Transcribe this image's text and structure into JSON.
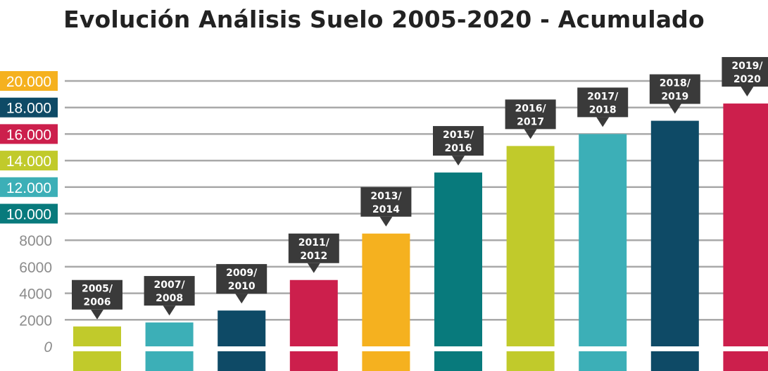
{
  "chart_data": {
    "type": "bar",
    "title": "Evolución Análisis Suelo 2005-2020 - Acumulado",
    "categories": [
      "2005/\n2006",
      "2007/\n2008",
      "2009/\n2010",
      "2011/\n2012",
      "2013/\n2014",
      "2015/\n2016",
      "2016/\n2017",
      "2017/\n2018",
      "2018/\n2019",
      "2019/\n2020"
    ],
    "values": [
      1500,
      1800,
      2700,
      5000,
      8500,
      13100,
      15100,
      16000,
      17000,
      18300
    ],
    "bar_colors": [
      "#c1ca2b",
      "#3cafb7",
      "#0e4a66",
      "#cc1f4c",
      "#f5b11f",
      "#087a7c",
      "#c1ca2b",
      "#3cafb7",
      "#0e4a66",
      "#cc1f4c"
    ],
    "ylim": [
      0,
      20000
    ],
    "y_ticks": [
      {
        "value": 0,
        "label": "0",
        "badge": false
      },
      {
        "value": 2000,
        "label": "2000",
        "badge": false
      },
      {
        "value": 4000,
        "label": "4000",
        "badge": false
      },
      {
        "value": 6000,
        "label": "6000",
        "badge": false
      },
      {
        "value": 8000,
        "label": "8000",
        "badge": false
      },
      {
        "value": 10000,
        "label": "10.000",
        "badge": true,
        "color": "#087a7c"
      },
      {
        "value": 12000,
        "label": "12.000",
        "badge": true,
        "color": "#3cafb7"
      },
      {
        "value": 14000,
        "label": "14.000",
        "badge": true,
        "color": "#c1ca2b"
      },
      {
        "value": 16000,
        "label": "16.000",
        "badge": true,
        "color": "#cc1f4c"
      },
      {
        "value": 18000,
        "label": "18.000",
        "badge": true,
        "color": "#0e4a66"
      },
      {
        "value": 20000,
        "label": "20.000",
        "badge": true,
        "color": "#f5b11f"
      }
    ],
    "grid": true,
    "gridline_color": "#a9a9a9",
    "callout_color": "#3a3a3a",
    "axis_label_color": "#8c8c8c",
    "xlabel": "",
    "ylabel": ""
  }
}
